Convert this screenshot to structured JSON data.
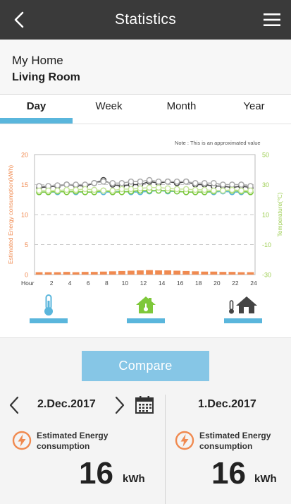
{
  "header": {
    "title": "Statistics"
  },
  "location": {
    "home": "My Home",
    "room": "Living Room"
  },
  "tabs": [
    {
      "label": "Day",
      "active": true
    },
    {
      "label": "Week",
      "active": false
    },
    {
      "label": "Month",
      "active": false
    },
    {
      "label": "Year",
      "active": false
    }
  ],
  "note": "Note : This is an approximated value",
  "colors": {
    "accent": "#5ab6dc",
    "energy": "#f08a50",
    "temperature": "#9ccd50",
    "header": "#3a3a3a"
  },
  "chart_data": {
    "type": "line",
    "xlabel": "Hour",
    "x": [
      1,
      2,
      3,
      4,
      5,
      6,
      7,
      8,
      9,
      10,
      11,
      12,
      13,
      14,
      15,
      16,
      17,
      18,
      19,
      20,
      21,
      22,
      23,
      24
    ],
    "x_tick_labels": [
      "2",
      "4",
      "6",
      "8",
      "10",
      "12",
      "14",
      "16",
      "18",
      "20",
      "22",
      "24"
    ],
    "ylabel": "Estimated Energy consumption(kWh)",
    "y2label": "Temperature(℃)",
    "ylim": [
      0,
      20
    ],
    "y_ticks": [
      0,
      5,
      10,
      15,
      20
    ],
    "y2lim": [
      -30,
      50
    ],
    "y2_ticks": [
      "-30",
      "-10",
      "10",
      "30",
      "50"
    ],
    "grid": true,
    "series": [
      {
        "axis": "left",
        "kind": "bar",
        "color": "#f08a50",
        "values": [
          0.4,
          0.4,
          0.4,
          0.45,
          0.4,
          0.45,
          0.45,
          0.5,
          0.55,
          0.6,
          0.65,
          0.7,
          0.75,
          0.7,
          0.7,
          0.65,
          0.6,
          0.55,
          0.5,
          0.5,
          0.45,
          0.45,
          0.4,
          0.4
        ]
      },
      {
        "axis": "right",
        "kind": "line",
        "color": "#444444",
        "values": [
          28,
          28.5,
          29,
          30,
          29.5,
          29,
          31,
          33,
          30,
          29,
          30,
          30,
          32,
          31,
          32,
          31,
          32,
          30,
          30,
          29,
          29,
          28,
          29,
          28
        ]
      },
      {
        "axis": "right",
        "kind": "line",
        "color": "#aaaaaa",
        "values": [
          29,
          29,
          29.5,
          30,
          30,
          30,
          31,
          32,
          31,
          31,
          32,
          32,
          33,
          32,
          32,
          32,
          32,
          31,
          31,
          31,
          30,
          30,
          30,
          29
        ]
      },
      {
        "axis": "right",
        "kind": "line",
        "color": "#5ab6dc",
        "values": [
          25,
          25,
          25,
          25.5,
          25,
          25,
          25,
          25,
          25,
          25.5,
          25,
          25,
          25.5,
          26,
          25.5,
          25.5,
          25,
          25,
          25,
          25,
          25.5,
          25,
          25,
          25
        ]
      },
      {
        "axis": "right",
        "kind": "line",
        "color": "#7ec83a",
        "values": [
          25,
          25,
          25.5,
          25,
          25.5,
          25,
          25,
          26,
          25,
          25,
          25.5,
          26,
          26,
          26,
          26,
          25.5,
          25,
          25,
          25,
          25.5,
          26,
          26,
          25.5,
          25
        ]
      },
      {
        "axis": "right",
        "kind": "line",
        "color": "#c6e59a",
        "values": [
          26,
          26,
          26,
          26.5,
          26.5,
          27,
          26.5,
          26,
          26,
          27,
          27,
          27.5,
          28,
          28,
          27.5,
          27,
          27,
          26.5,
          26.5,
          26,
          26,
          26.5,
          26,
          26
        ]
      }
    ]
  },
  "compare": {
    "label": "Compare"
  },
  "left_panel": {
    "date": "2.Dec.2017",
    "label_line1": "Estimated Energy",
    "label_line2": "consumption",
    "value": "16",
    "unit": "kWh"
  },
  "right_panel": {
    "date": "1.Dec.2017",
    "label_line1": "Estimated Energy",
    "label_line2": "consumption",
    "value": "16",
    "unit": "kWh"
  },
  "icons": {
    "back": "chevron-left-icon",
    "menu": "hamburger-icon",
    "calendar": "calendar-icon",
    "energy": "lightning-icon"
  }
}
